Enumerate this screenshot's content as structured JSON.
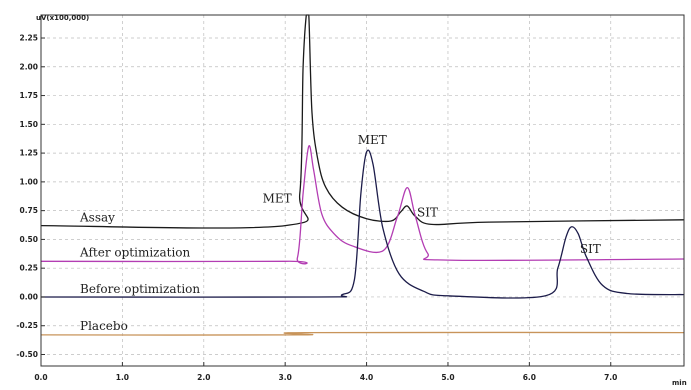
{
  "chart_data": {
    "type": "line",
    "y_unit_label": "uV(x100,000)",
    "x_unit_label": "min",
    "xlim": [
      0.0,
      7.9
    ],
    "ylim": [
      -0.6,
      2.45
    ],
    "grid": true,
    "x_ticks": [
      0.0,
      1.0,
      2.0,
      3.0,
      4.0,
      5.0,
      6.0,
      7.0
    ],
    "x_tick_labels": [
      "0.0",
      "1.0",
      "2.0",
      "3.0",
      "4.0",
      "5.0",
      "6.0",
      "7.0"
    ],
    "y_ticks": [
      2.25,
      2.0,
      1.75,
      1.5,
      1.25,
      1.0,
      0.75,
      0.5,
      0.25,
      0.0,
      -0.25,
      -0.5
    ],
    "y_tick_labels": [
      "2.25",
      "2.00",
      "1.75",
      "1.50",
      "1.25",
      "1.00",
      "0.75",
      "0.50",
      "0.25",
      "0.00",
      "-0.25",
      "-0.50"
    ],
    "series": [
      {
        "name": "Assay",
        "color": "#1a1a1a",
        "baseline": 0.62,
        "peaks": [
          {
            "label": "MET",
            "x": 3.28,
            "height": 2.2
          },
          {
            "label": "SIT",
            "x": 4.5,
            "height": 0.17
          }
        ],
        "x": [
          0.0,
          3.0,
          3.18,
          3.22,
          3.26,
          3.29,
          3.33,
          3.4,
          3.5,
          3.7,
          4.0,
          4.3,
          4.42,
          4.5,
          4.6,
          4.8,
          5.5,
          7.9
        ],
        "y": [
          0.62,
          0.62,
          0.9,
          2.0,
          2.45,
          2.45,
          1.6,
          1.2,
          0.95,
          0.78,
          0.68,
          0.66,
          0.74,
          0.79,
          0.7,
          0.63,
          0.65,
          0.67
        ]
      },
      {
        "name": "After optimization",
        "color": "#b33db3",
        "baseline": 0.31,
        "peaks": [
          {
            "label": "MET",
            "x": 3.29,
            "height": 1.0
          },
          {
            "label": "SIT",
            "x": 4.5,
            "height": 0.65
          }
        ],
        "x": [
          0.0,
          3.0,
          3.15,
          3.22,
          3.29,
          3.35,
          3.45,
          3.6,
          3.8,
          4.2,
          4.38,
          4.5,
          4.6,
          4.75,
          5.0,
          7.9
        ],
        "y": [
          0.31,
          0.31,
          0.34,
          0.9,
          1.31,
          1.1,
          0.72,
          0.55,
          0.45,
          0.4,
          0.7,
          0.95,
          0.7,
          0.38,
          0.32,
          0.33
        ]
      },
      {
        "name": "Before optimization",
        "color": "#1c1c4a",
        "baseline": 0.0,
        "peaks": [
          {
            "label": "MET",
            "x": 4.0,
            "height": 1.26
          },
          {
            "label": "SIT",
            "x": 6.52,
            "height": 0.61
          }
        ],
        "x": [
          0.0,
          3.4,
          3.7,
          3.85,
          3.93,
          4.0,
          4.08,
          4.2,
          4.4,
          4.7,
          5.0,
          6.2,
          6.35,
          6.45,
          6.52,
          6.6,
          6.7,
          6.9,
          7.2,
          7.9
        ],
        "y": [
          0.0,
          0.0,
          0.02,
          0.15,
          0.9,
          1.26,
          1.15,
          0.6,
          0.2,
          0.05,
          0.01,
          0.01,
          0.25,
          0.52,
          0.61,
          0.55,
          0.35,
          0.1,
          0.03,
          0.02
        ]
      },
      {
        "name": "Placebo",
        "color": "#c8945a",
        "baseline": -0.32,
        "x": [
          0.0,
          3.2,
          3.25,
          7.9
        ],
        "y": [
          -0.33,
          -0.33,
          -0.31,
          -0.31
        ]
      }
    ],
    "annotations": [
      {
        "text": "Assay",
        "series": "Assay"
      },
      {
        "text": "After optimization",
        "series": "After optimization"
      },
      {
        "text": "Before optimization",
        "series": "Before optimization"
      },
      {
        "text": "Placebo",
        "series": "Placebo"
      },
      {
        "text": "MET",
        "peak": "Assay/After MET"
      },
      {
        "text": "SIT",
        "peak": "After SIT"
      },
      {
        "text": "MET",
        "peak": "Before MET"
      },
      {
        "text": "SIT",
        "peak": "Before SIT"
      }
    ]
  }
}
